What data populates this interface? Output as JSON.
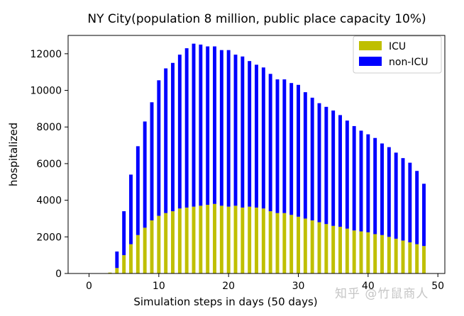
{
  "chart_data": {
    "type": "bar",
    "stacked": true,
    "title": "NY City(population 8 million, public place capacity  10%)",
    "xlabel": "Simulation steps in days (50 days)",
    "ylabel": "hospitalized",
    "xlim": [
      -3,
      51
    ],
    "ylim": [
      0,
      13000
    ],
    "xticks": [
      0,
      10,
      20,
      30,
      40,
      50
    ],
    "xtick_labels": [
      "0",
      "10",
      "20",
      "30",
      "40",
      "50"
    ],
    "yticks": [
      0,
      2000,
      4000,
      6000,
      8000,
      10000,
      12000
    ],
    "ytick_labels": [
      "0",
      "2000",
      "4000",
      "6000",
      "8000",
      "10000",
      "12000"
    ],
    "legend_position": "top-right",
    "x": [
      3,
      4,
      5,
      6,
      7,
      8,
      9,
      10,
      11,
      12,
      13,
      14,
      15,
      16,
      17,
      18,
      19,
      20,
      21,
      22,
      23,
      24,
      25,
      26,
      27,
      28,
      29,
      30,
      31,
      32,
      33,
      34,
      35,
      36,
      37,
      38,
      39,
      40,
      41,
      42,
      43,
      44,
      45,
      46,
      47,
      48
    ],
    "series": [
      {
        "name": "ICU",
        "color": "#bfbf00",
        "values": [
          50,
          300,
          1000,
          1600,
          2100,
          2500,
          2900,
          3150,
          3300,
          3400,
          3550,
          3600,
          3650,
          3700,
          3750,
          3800,
          3700,
          3650,
          3700,
          3600,
          3650,
          3600,
          3550,
          3400,
          3300,
          3300,
          3200,
          3100,
          3000,
          2900,
          2800,
          2700,
          2600,
          2550,
          2450,
          2350,
          2300,
          2250,
          2150,
          2100,
          2000,
          1900,
          1800,
          1700,
          1600,
          1500
        ]
      },
      {
        "name": "non-ICU",
        "color": "#0000ff",
        "values": [
          0,
          900,
          2400,
          3800,
          4850,
          5800,
          6450,
          7400,
          7900,
          8100,
          8400,
          8700,
          8900,
          8800,
          8650,
          8600,
          8500,
          8550,
          8250,
          8250,
          7950,
          7800,
          7700,
          7500,
          7300,
          7300,
          7200,
          7200,
          6900,
          6700,
          6500,
          6400,
          6300,
          6100,
          5900,
          5700,
          5500,
          5350,
          5250,
          5000,
          4900,
          4700,
          4500,
          4350,
          4000,
          3400
        ]
      }
    ]
  },
  "watermark": "知乎 @竹鼠商人"
}
